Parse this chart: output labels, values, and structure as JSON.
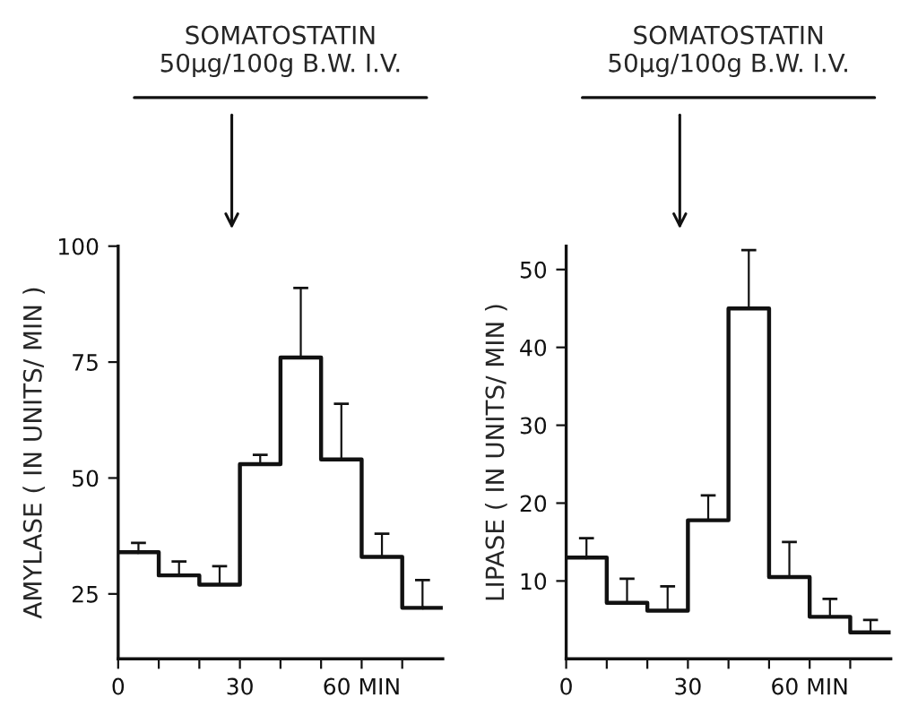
{
  "chart_data": [
    {
      "type": "step",
      "title": "SOMATOSTATIN",
      "subtitle": "50μg/100g B.W. I.V.",
      "ylabel": "AMYLASE ( IN UNITS/ MIN )",
      "x": [
        5,
        15,
        25,
        35,
        45,
        55,
        65,
        75
      ],
      "values": [
        34,
        29,
        27,
        53,
        76,
        54,
        33,
        22
      ],
      "errors": [
        [
          34,
          36
        ],
        [
          29,
          32
        ],
        [
          27,
          31
        ],
        [
          53,
          55
        ],
        [
          76,
          91
        ],
        [
          54,
          66
        ],
        [
          33,
          38
        ],
        [
          22,
          28
        ]
      ],
      "color": "#111111",
      "xlim": [
        0,
        80
      ],
      "xticks": [
        0,
        {
          "value": 10,
          "label": null
        },
        {
          "value": 20,
          "label": null
        },
        30,
        {
          "value": 40,
          "label": null
        },
        {
          "value": 50,
          "label": null
        },
        {
          "value": 60,
          "label": "60 MIN"
        },
        {
          "value": 70,
          "label": null
        }
      ],
      "ylim": [
        11,
        100
      ],
      "yticks": [
        25,
        50,
        75,
        100
      ],
      "grid": false
    },
    {
      "type": "step",
      "title": "SOMATOSTATIN",
      "subtitle": "50μg/100g B.W. I.V.",
      "ylabel": "LIPASE ( IN UNITS/ MIN )",
      "x": [
        5,
        15,
        25,
        35,
        45,
        55,
        65,
        75
      ],
      "values": [
        13,
        7.2,
        6.2,
        17.8,
        45,
        10.5,
        5.4,
        3.4
      ],
      "errors": [
        [
          13,
          15.5
        ],
        [
          7.2,
          10.3
        ],
        [
          6.2,
          9.3
        ],
        [
          17.8,
          21
        ],
        [
          45,
          52.5
        ],
        [
          10.5,
          15
        ],
        [
          5.4,
          7.7
        ],
        [
          3.4,
          5
        ]
      ],
      "color": "#111111",
      "xlim": [
        0,
        80
      ],
      "xticks": [
        0,
        {
          "value": 10,
          "label": null
        },
        {
          "value": 20,
          "label": null
        },
        30,
        {
          "value": 40,
          "label": null
        },
        {
          "value": 50,
          "label": null
        },
        {
          "value": 60,
          "label": "60 MIN"
        },
        {
          "value": 70,
          "label": null
        }
      ],
      "ylim": [
        0,
        53
      ],
      "yticks": [
        10,
        20,
        30,
        40,
        50
      ],
      "grid": false
    }
  ]
}
